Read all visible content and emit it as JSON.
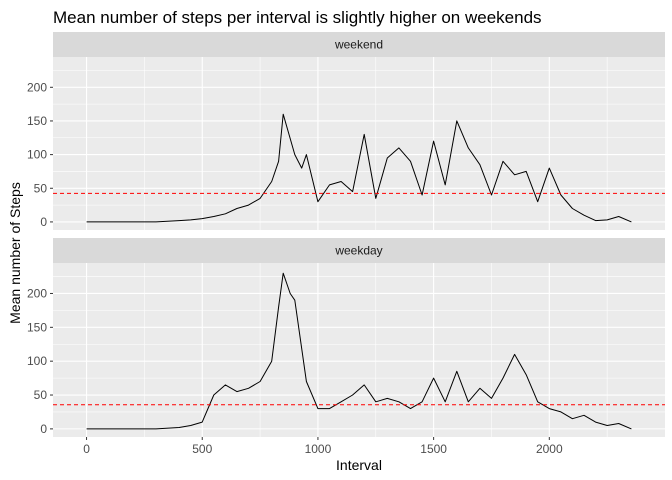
{
  "chart_data": {
    "type": "line",
    "title": "Mean number of steps per interval is slightly higher on weekends",
    "xlabel": "Interval",
    "ylabel": "Mean number of Steps",
    "xlim": [
      -145,
      2500
    ],
    "ylim": [
      -12,
      245
    ],
    "x_ticks": [
      0,
      500,
      1000,
      1500,
      2000
    ],
    "x_tick_labels": [
      "0",
      "500",
      "1000",
      "1500",
      "2000"
    ],
    "y_ticks": [
      0,
      50,
      100,
      150,
      200
    ],
    "y_tick_labels": [
      "0",
      "50",
      "100",
      "150",
      "200"
    ],
    "grid": true,
    "line_color": "#000000",
    "mean_line_color": "#ff0000",
    "panel_background": "#ebebeb",
    "strip_background": "#d9d9d9",
    "panels": [
      {
        "strip": "weekend",
        "mean": 42.4,
        "x": [
          0,
          100,
          200,
          300,
          400,
          450,
          500,
          550,
          600,
          650,
          700,
          750,
          800,
          830,
          850,
          900,
          930,
          950,
          1000,
          1050,
          1100,
          1150,
          1200,
          1250,
          1300,
          1350,
          1400,
          1450,
          1500,
          1550,
          1600,
          1650,
          1700,
          1750,
          1800,
          1850,
          1900,
          1950,
          2000,
          2050,
          2100,
          2150,
          2200,
          2250,
          2300,
          2355
        ],
        "y": [
          0,
          0,
          0,
          0,
          2,
          3,
          5,
          8,
          12,
          20,
          25,
          35,
          60,
          90,
          160,
          100,
          80,
          100,
          30,
          55,
          60,
          45,
          130,
          35,
          95,
          110,
          90,
          40,
          120,
          55,
          150,
          110,
          85,
          40,
          90,
          70,
          75,
          30,
          80,
          40,
          20,
          10,
          2,
          3,
          8,
          0
        ]
      },
      {
        "strip": "weekday",
        "mean": 35.6,
        "x": [
          0,
          100,
          200,
          300,
          400,
          450,
          500,
          550,
          600,
          650,
          700,
          750,
          800,
          830,
          850,
          880,
          900,
          950,
          1000,
          1050,
          1100,
          1150,
          1200,
          1250,
          1300,
          1350,
          1400,
          1450,
          1500,
          1550,
          1600,
          1650,
          1700,
          1750,
          1800,
          1850,
          1900,
          1950,
          2000,
          2050,
          2100,
          2150,
          2200,
          2250,
          2300,
          2355
        ],
        "y": [
          0,
          0,
          0,
          0,
          2,
          5,
          10,
          50,
          65,
          55,
          60,
          70,
          100,
          180,
          230,
          200,
          190,
          70,
          30,
          30,
          40,
          50,
          65,
          40,
          45,
          40,
          30,
          40,
          75,
          40,
          85,
          40,
          60,
          45,
          75,
          110,
          80,
          40,
          30,
          25,
          15,
          20,
          10,
          5,
          8,
          0
        ]
      }
    ]
  }
}
